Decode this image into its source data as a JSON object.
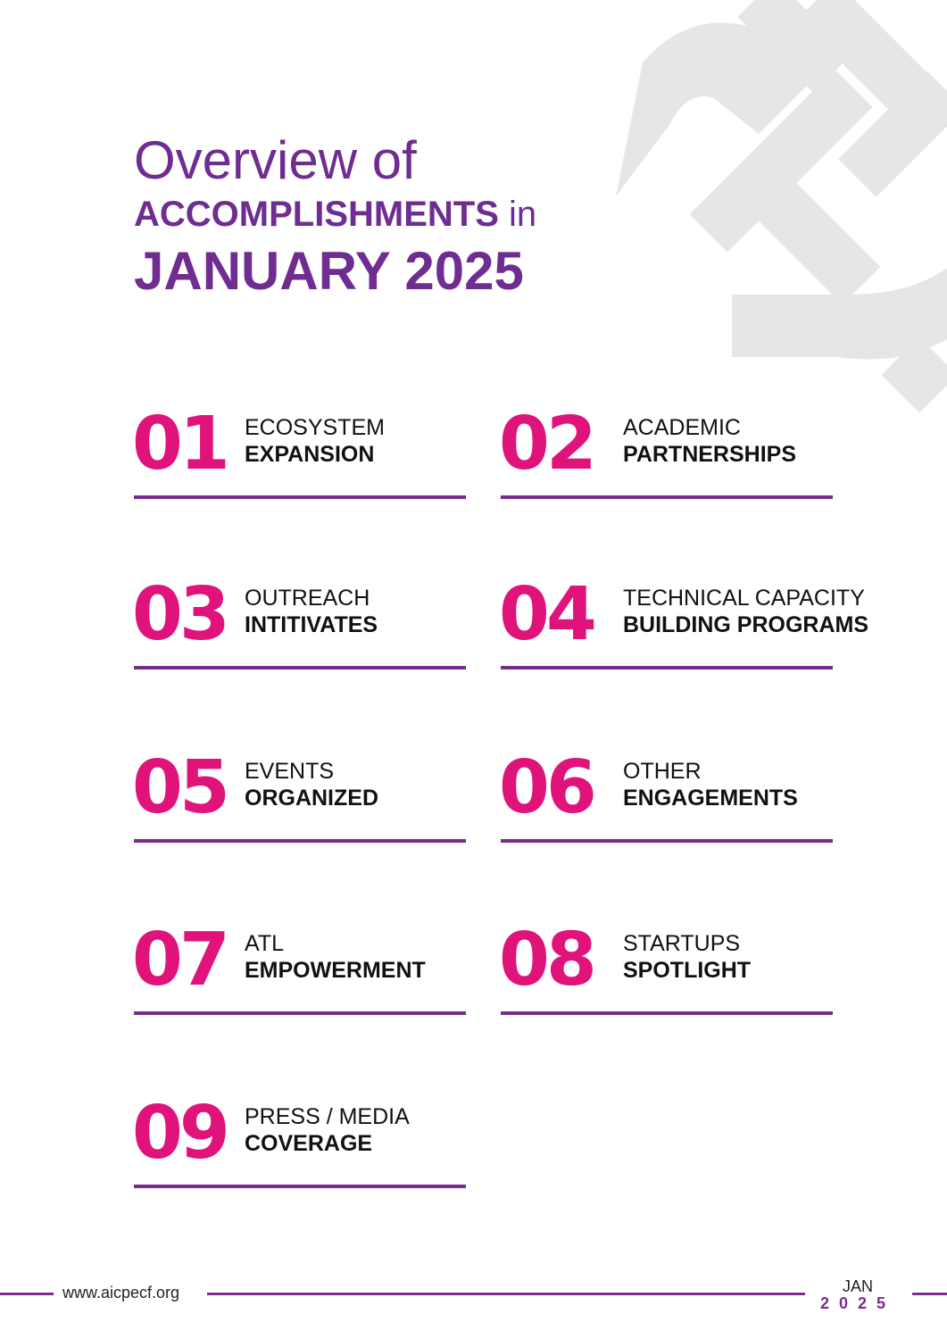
{
  "title": {
    "line1": "Overview of",
    "line2_strong": "ACCOMPLISHMENTS",
    "line2_rest": " in",
    "line3": "JANUARY 2025"
  },
  "items": [
    {
      "number": "01",
      "line1": "ECOSYSTEM",
      "line2": "EXPANSION"
    },
    {
      "number": "02",
      "line1": "ACADEMIC",
      "line2": "PARTNERSHIPS"
    },
    {
      "number": "03",
      "line1": "OUTREACH",
      "line2": "INTITIVATES"
    },
    {
      "number": "04",
      "line1": "TECHNICAL CAPACITY",
      "line2": "BUILDING PROGRAMS"
    },
    {
      "number": "05",
      "line1": "EVENTS",
      "line2": "ORGANIZED"
    },
    {
      "number": "06",
      "line1": "OTHER",
      "line2": "ENGAGEMENTS"
    },
    {
      "number": "07",
      "line1": "ATL",
      "line2": "EMPOWERMENT"
    },
    {
      "number": "08",
      "line1": "STARTUPS",
      "line2": "SPOTLIGHT"
    },
    {
      "number": "09",
      "line1": "PRESS / MEDIA",
      "line2": "COVERAGE"
    }
  ],
  "footer": {
    "url": "www.aicpecf.org",
    "month": "JAN",
    "year": "2025"
  },
  "colors": {
    "title_purple": "#6f2c91",
    "number_pink": "#e0137b",
    "rule_purple": "#7b2d8e",
    "watermark_gray": "#e6e6e6"
  }
}
